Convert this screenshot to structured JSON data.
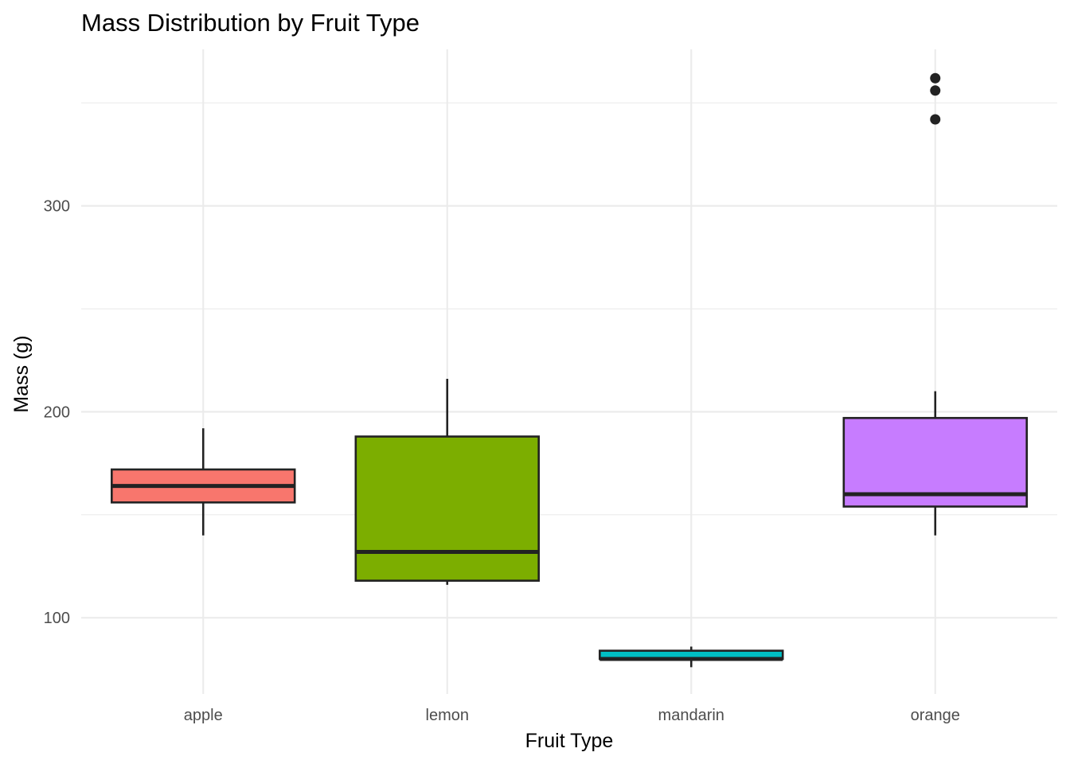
{
  "chart_data": {
    "type": "box",
    "title": "Mass Distribution by Fruit Type",
    "xlabel": "Fruit Type",
    "ylabel": "Mass (g)",
    "ylim": [
      63,
      376
    ],
    "y_major_ticks": [
      100,
      200,
      300
    ],
    "y_minor_ticks": [
      150,
      250,
      350
    ],
    "grid": true,
    "legend": "none",
    "categories": [
      "apple",
      "lemon",
      "mandarin",
      "orange"
    ],
    "series": [
      {
        "category": "apple",
        "color": "#F8766D",
        "min": 140,
        "q1": 156,
        "median": 164,
        "q3": 172,
        "max": 192,
        "outliers": []
      },
      {
        "category": "lemon",
        "color": "#7CAE00",
        "min": 116,
        "q1": 118,
        "median": 132,
        "q3": 188,
        "max": 216,
        "outliers": []
      },
      {
        "category": "mandarin",
        "color": "#00BFC4",
        "min": 76,
        "q1": 80,
        "median": 80,
        "q3": 84,
        "max": 86,
        "outliers": []
      },
      {
        "category": "orange",
        "color": "#C77CFF",
        "min": 140,
        "q1": 154,
        "median": 160,
        "q3": 197,
        "max": 210,
        "outliers": [
          342,
          356,
          362
        ]
      }
    ]
  }
}
